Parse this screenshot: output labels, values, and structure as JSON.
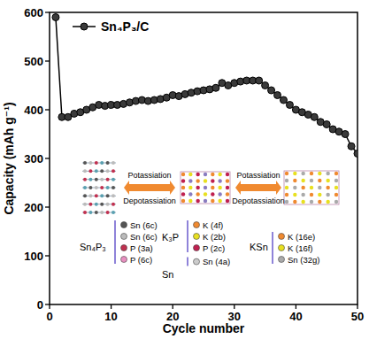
{
  "chart_data": {
    "type": "line",
    "x_label": "Cycle number",
    "y_label": "Capacity (mAh g⁻¹)",
    "xlim": [
      0,
      50
    ],
    "ylim": [
      0,
      600
    ],
    "xticks": [
      0,
      10,
      20,
      30,
      40,
      50
    ],
    "yticks": [
      0,
      100,
      200,
      300,
      400,
      500,
      600
    ],
    "legend": "upper left",
    "series": [
      {
        "name": "Sn₄P₃/C",
        "color": "#000000",
        "marker": "circle",
        "x": [
          1,
          2,
          3,
          4,
          5,
          6,
          7,
          8,
          9,
          10,
          11,
          12,
          13,
          14,
          15,
          16,
          17,
          18,
          19,
          20,
          21,
          22,
          23,
          24,
          25,
          26,
          27,
          28,
          29,
          30,
          31,
          32,
          33,
          34,
          35,
          36,
          37,
          38,
          39,
          40,
          41,
          42,
          43,
          44,
          45,
          46,
          47,
          48,
          49,
          50
        ],
        "values": [
          590,
          385,
          385,
          392,
          395,
          400,
          405,
          410,
          408,
          410,
          410,
          412,
          415,
          418,
          420,
          418,
          420,
          422,
          425,
          430,
          428,
          432,
          435,
          438,
          440,
          442,
          445,
          455,
          450,
          455,
          458,
          460,
          460,
          460,
          450,
          440,
          430,
          420,
          410,
          400,
          395,
          390,
          385,
          375,
          370,
          360,
          355,
          350,
          325,
          310
        ]
      }
    ],
    "annotations": {
      "arrows": [
        {
          "forward": "Potassiation",
          "backward": "Depotassiation"
        },
        {
          "forward": "Potassiation",
          "backward": "Depotassiation"
        }
      ],
      "phases": [
        {
          "label": "Sn₄P₃",
          "sites": [
            {
              "text": "Sn (6c)",
              "color": "#555555"
            },
            {
              "text": "Sn (6c)",
              "color": "#bbbbbb"
            },
            {
              "text": "P (3a)",
              "color": "#c0304f"
            },
            {
              "text": "P (6c)",
              "color": "#e88fc0"
            }
          ]
        },
        {
          "label": "K₃P",
          "sites": [
            {
              "text": "K (4f)",
              "color": "#f08a30"
            },
            {
              "text": "K (2b)",
              "color": "#e8e020"
            },
            {
              "text": "P (2c)",
              "color": "#c02050"
            }
          ]
        },
        {
          "label": "Sn",
          "sites": [
            {
              "text": "Sn (4a)",
              "color": "#cccccc"
            }
          ]
        },
        {
          "label": "KSn",
          "sites": [
            {
              "text": "K (16e)",
              "color": "#f08a30"
            },
            {
              "text": "K (16f)",
              "color": "#e8e020"
            },
            {
              "text": "Sn (32g)",
              "color": "#aaaaaa"
            }
          ]
        }
      ]
    }
  }
}
